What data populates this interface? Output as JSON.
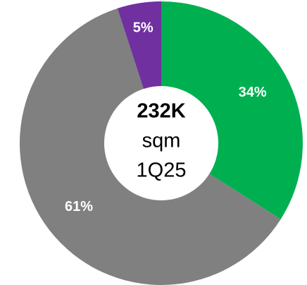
{
  "chart_data": {
    "type": "donut",
    "categories": [
      null,
      null,
      null
    ],
    "values": [
      34,
      61,
      5
    ],
    "value_labels": [
      "34%",
      "61%",
      "5%"
    ],
    "colors": [
      "#00b050",
      "#808080",
      "#7030a0"
    ],
    "center_text": [
      "232K",
      "sqm",
      "1Q25"
    ],
    "center_text_colors": [
      "#00a84f",
      "#000000",
      "#000000"
    ]
  }
}
